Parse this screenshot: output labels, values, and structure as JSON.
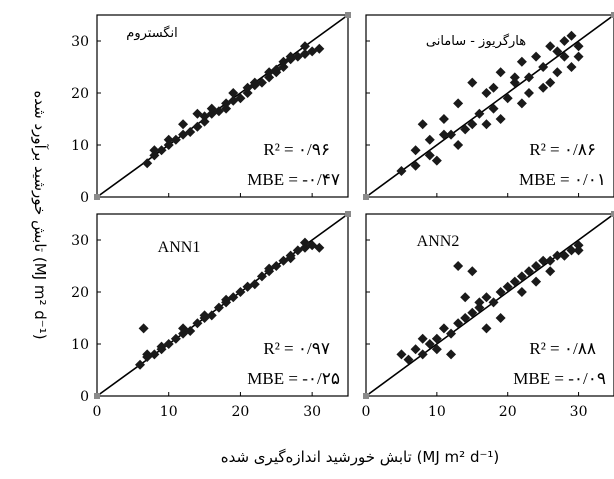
{
  "x_axis_title": "تابش خورشید اندازه‌گیری شده (MJ m² d⁻¹)",
  "y_axis_title": "تابش خورشید برآورد شده (MJ m² d⁻¹)",
  "colors": {
    "markers": "#1a1a1a",
    "fit_line": "#000000",
    "corner_markers": "#8a8a8a"
  },
  "chart_data": [
    {
      "type": "scatter",
      "title": "انگستروم",
      "xlabel": "",
      "ylabel": "",
      "xlim": [
        0,
        35
      ],
      "ylim": [
        0,
        35
      ],
      "x_ticks": [
        "0",
        "10",
        "20",
        "30"
      ],
      "y_ticks": [
        "0",
        "10",
        "20",
        "30"
      ],
      "r2_label": "R² = ۰/۹۶",
      "mbe_label": "MBE = -۰/۴۷",
      "reference_line": "1:1",
      "x": [
        7,
        8,
        9,
        10,
        11,
        12,
        13,
        14,
        15,
        15,
        16,
        17,
        18,
        18,
        19,
        20,
        21,
        21,
        22,
        23,
        24,
        24,
        25,
        26,
        26,
        27,
        28,
        29,
        30,
        31,
        8,
        10,
        12,
        14,
        16,
        19,
        22,
        25,
        27,
        29
      ],
      "y": [
        6.5,
        8,
        9,
        10,
        11,
        12,
        12.5,
        13.5,
        14.5,
        15.5,
        16,
        16.5,
        17,
        18,
        18.5,
        19,
        20,
        21,
        21.5,
        22,
        23,
        24,
        24.5,
        25,
        26,
        26.5,
        27,
        27.5,
        28,
        28.5,
        9,
        11,
        14,
        16,
        17,
        20,
        22,
        24,
        27,
        29
      ]
    },
    {
      "type": "scatter",
      "title": "هارگریوز - سامانی",
      "xlabel": "",
      "ylabel": "",
      "xlim": [
        0,
        35
      ],
      "ylim": [
        0,
        35
      ],
      "x_ticks": [
        "0",
        "10",
        "20",
        "30"
      ],
      "y_ticks": [
        "0",
        "10",
        "20",
        "30"
      ],
      "r2_label": "R² = ۰/۸۶",
      "mbe_label": "MBE = ۰/۰۱",
      "reference_line": "1:1",
      "x": [
        5,
        7,
        8,
        9,
        10,
        11,
        12,
        13,
        14,
        15,
        16,
        17,
        18,
        18,
        19,
        20,
        21,
        22,
        22,
        23,
        24,
        25,
        25,
        26,
        27,
        27,
        28,
        29,
        29,
        30,
        7,
        9,
        11,
        13,
        15,
        17,
        19,
        21,
        23,
        26,
        28,
        30
      ],
      "y": [
        5,
        9,
        14,
        11,
        7,
        15,
        12,
        18,
        13,
        22,
        16,
        14,
        21,
        17,
        24,
        19,
        22,
        18,
        26,
        23,
        27,
        21,
        25,
        29,
        24,
        28,
        27,
        31,
        25,
        29,
        6,
        8,
        12,
        10,
        14,
        20,
        15,
        23,
        20,
        22,
        30,
        27
      ]
    },
    {
      "type": "scatter",
      "title": "ANN1",
      "xlabel": "",
      "ylabel": "",
      "xlim": [
        0,
        35
      ],
      "ylim": [
        0,
        35
      ],
      "x_ticks": [
        "0",
        "10",
        "20",
        "30"
      ],
      "y_ticks": [
        "0",
        "10",
        "20",
        "30"
      ],
      "r2_label": "R² = ۰/۹۷",
      "mbe_label": "MBE = -۰/۲۵",
      "reference_line": "1:1",
      "x": [
        6,
        7,
        8,
        9,
        10,
        11,
        12,
        13,
        14,
        15,
        16,
        17,
        18,
        19,
        20,
        21,
        22,
        23,
        24,
        25,
        26,
        27,
        28,
        29,
        30,
        31,
        7,
        9,
        12,
        15,
        18,
        21,
        24,
        27,
        29,
        6.5
      ],
      "y": [
        6,
        7.5,
        8,
        9,
        10,
        11,
        12,
        12.5,
        14,
        15,
        15.5,
        17,
        18,
        19,
        20,
        21,
        21.5,
        23,
        24,
        25,
        26,
        27,
        28,
        28.5,
        29,
        28.5,
        8,
        9.5,
        13,
        15.5,
        18.5,
        21,
        24.5,
        26.5,
        29.5,
        13
      ]
    },
    {
      "type": "scatter",
      "title": "ANN2",
      "xlabel": "",
      "ylabel": "",
      "xlim": [
        0,
        35
      ],
      "ylim": [
        0,
        35
      ],
      "x_ticks": [
        "0",
        "10",
        "20",
        "30"
      ],
      "y_ticks": [
        "0",
        "10",
        "20",
        "30"
      ],
      "r2_label": "R² = ۰/۸۸",
      "mbe_label": "MBE = -۰/۰۹",
      "reference_line": "1:1",
      "x": [
        5,
        6,
        7,
        8,
        9,
        10,
        11,
        12,
        13,
        14,
        15,
        16,
        17,
        18,
        19,
        20,
        21,
        22,
        23,
        24,
        25,
        26,
        27,
        28,
        29,
        30,
        13,
        15,
        14,
        16,
        8,
        10,
        12,
        17,
        19,
        22,
        24,
        26,
        28,
        30
      ],
      "y": [
        8,
        7,
        9,
        8,
        10,
        11,
        13,
        12,
        14,
        15,
        16,
        17,
        19,
        18,
        20,
        21,
        22,
        23,
        24,
        25,
        26,
        26,
        27,
        27,
        28,
        29,
        25,
        24,
        19,
        18,
        11,
        9,
        8,
        13,
        15,
        20,
        22,
        24,
        27,
        28
      ]
    }
  ]
}
